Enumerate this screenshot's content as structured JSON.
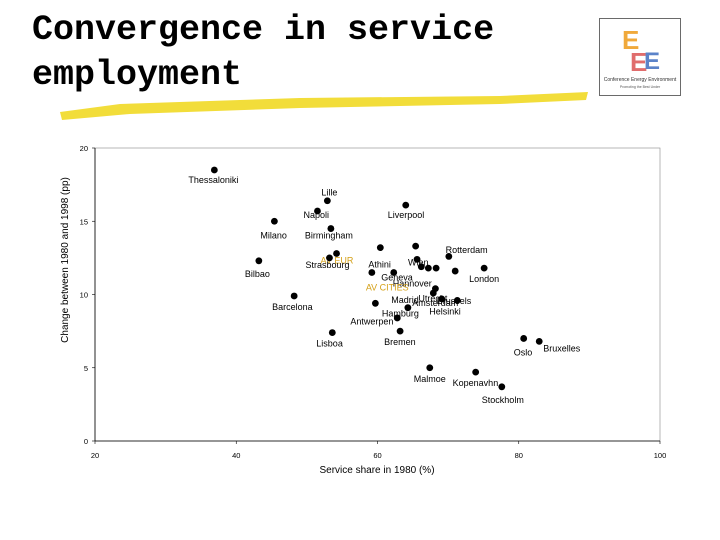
{
  "slide": {
    "title": "Convergence in service employment",
    "logo": {
      "letters": "EEE",
      "line1": "Conference Energy Environment",
      "line2": "Promoting the Best Under"
    }
  },
  "colors": {
    "highlight": "#f2dd3a",
    "marker": "#000000",
    "aggregate_label": "#d4a017"
  },
  "chart_data": {
    "type": "scatter",
    "title": "",
    "xlabel": "Service share in 1980 (%)",
    "ylabel": "Change between 1980 and 1998 (pp)",
    "xlim": [
      20,
      100
    ],
    "ylim": [
      0,
      20
    ],
    "x_ticks": [
      "20",
      "40",
      "60",
      "80",
      "100"
    ],
    "y_ticks": [
      "0",
      "5",
      "10",
      "15",
      "20"
    ],
    "grid": false,
    "points": [
      {
        "label": "Thessaloniki",
        "x": 36.9,
        "y": 18.5
      },
      {
        "label": "Lille",
        "x": 52.9,
        "y": 16.4
      },
      {
        "label": "Napoli",
        "x": 51.5,
        "y": 15.7
      },
      {
        "label": "Milano",
        "x": 45.4,
        "y": 15.0
      },
      {
        "label": "Liverpool",
        "x": 64.0,
        "y": 16.1
      },
      {
        "label": "Birmingham",
        "x": 53.4,
        "y": 14.5
      },
      {
        "label": "Rotterdam",
        "x": 65.4,
        "y": 13.3
      },
      {
        "label": "Athini",
        "x": 60.4,
        "y": 13.2
      },
      {
        "label": "AV EUR",
        "x": 54.2,
        "y": 12.8
      },
      {
        "label": "Strasbourg",
        "x": 53.2,
        "y": 12.5
      },
      {
        "label": "Wien",
        "x": 65.6,
        "y": 12.4
      },
      {
        "label": "Geneva",
        "x": 66.2,
        "y": 11.9
      },
      {
        "label": "Bilbao",
        "x": 43.2,
        "y": 12.3
      },
      {
        "label": "",
        "x": 70.1,
        "y": 12.6
      },
      {
        "label": "",
        "x": 67.2,
        "y": 11.8
      },
      {
        "label": "",
        "x": 68.3,
        "y": 11.8
      },
      {
        "label": "",
        "x": 71.0,
        "y": 11.6
      },
      {
        "label": "London",
        "x": 75.1,
        "y": 11.8
      },
      {
        "label": "Hannover",
        "x": 62.3,
        "y": 11.5
      },
      {
        "label": "AV CITIES",
        "x": 59.2,
        "y": 11.5
      },
      {
        "label": "Utrecht",
        "x": 68.2,
        "y": 10.4
      },
      {
        "label": "Amsterdam",
        "x": 67.9,
        "y": 10.1
      },
      {
        "label": "Brussels",
        "x": 69.1,
        "y": 9.7
      },
      {
        "label": "Barcelona",
        "x": 48.2,
        "y": 9.9
      },
      {
        "label": "Helsinki",
        "x": 71.3,
        "y": 9.6
      },
      {
        "label": "Antwerpen",
        "x": 59.7,
        "y": 9.4
      },
      {
        "label": "Hamburg",
        "x": 64.3,
        "y": 9.1
      },
      {
        "label": "Madrid",
        "x": 62.8,
        "y": 8.4
      },
      {
        "label": "Lisboa",
        "x": 53.6,
        "y": 7.4
      },
      {
        "label": "Bremen",
        "x": 63.2,
        "y": 7.5
      },
      {
        "label": "Oslo",
        "x": 80.7,
        "y": 7.0
      },
      {
        "label": "Bruxelles",
        "x": 82.9,
        "y": 6.8
      },
      {
        "label": "Malmoe",
        "x": 67.4,
        "y": 5.0
      },
      {
        "label": "Kopenavhn",
        "x": 73.9,
        "y": 4.7
      },
      {
        "label": "Stockholm",
        "x": 77.6,
        "y": 3.7
      }
    ]
  }
}
